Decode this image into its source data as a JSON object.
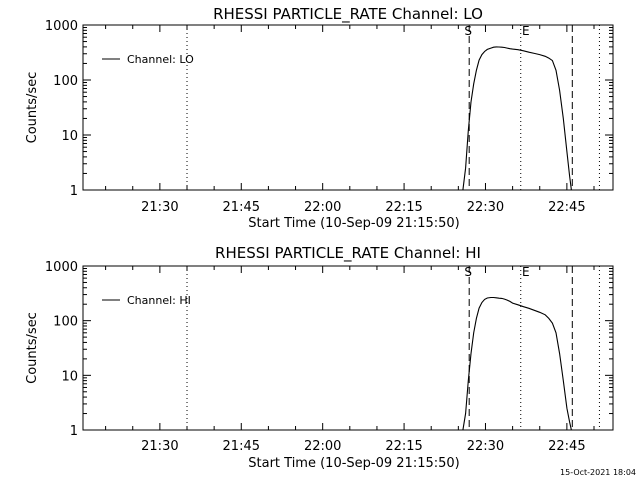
{
  "footer": {
    "timestamp": "15-Oct-2021 18:04"
  },
  "colors": {
    "background": "#ffffff",
    "ink": "#000000"
  },
  "chart_data": [
    {
      "type": "line",
      "title": "RHESSI PARTICLE_RATE Channel: LO",
      "xlabel": "Start Time (10-Sep-09 21:15:50)",
      "ylabel": "Counts/sec",
      "y_scale": "log",
      "xlim": [
        "21:15:50",
        "22:53:30"
      ],
      "ylim": [
        1,
        1000
      ],
      "x_ticks": [
        "21:30",
        "21:45",
        "22:00",
        "22:15",
        "22:30",
        "22:45"
      ],
      "y_ticks": [
        "1",
        "10",
        "100",
        "1000"
      ],
      "legend": {
        "placement": "top-left",
        "entries": [
          "Channel: LO"
        ]
      },
      "markers": [
        {
          "label": "",
          "time": "21:35:00",
          "style": "dotted"
        },
        {
          "label": "S",
          "time": "22:27:00",
          "style": "dashed"
        },
        {
          "label": "E",
          "time": "22:36:30",
          "style": "dotted"
        },
        {
          "label": "",
          "time": "22:46:00",
          "style": "dashed"
        },
        {
          "label": "",
          "time": "22:51:00",
          "style": "dotted"
        }
      ],
      "series": [
        {
          "name": "Channel: LO",
          "x": [
            "22:25:50",
            "22:26:20",
            "22:26:50",
            "22:27:20",
            "22:27:50",
            "22:28:20",
            "22:28:50",
            "22:29:20",
            "22:29:50",
            "22:30:20",
            "22:31:00",
            "22:31:30",
            "22:32:00",
            "22:32:30",
            "22:33:00",
            "22:33:30",
            "22:34:00",
            "22:34:30",
            "22:35:00",
            "22:36:00",
            "22:37:00",
            "22:38:00",
            "22:39:00",
            "22:40:00",
            "22:41:00",
            "22:41:40",
            "22:42:20",
            "22:43:00",
            "22:43:40",
            "22:44:20",
            "22:45:00",
            "22:45:30",
            "22:45:50"
          ],
          "values": [
            1,
            2.5,
            12,
            40,
            85,
            150,
            230,
            290,
            330,
            360,
            380,
            395,
            400,
            398,
            395,
            390,
            380,
            370,
            365,
            355,
            340,
            320,
            305,
            290,
            270,
            250,
            225,
            150,
            65,
            20,
            5,
            1.8,
            1
          ]
        }
      ]
    },
    {
      "type": "line",
      "title": "RHESSI PARTICLE_RATE Channel: HI",
      "xlabel": "Start Time (10-Sep-09 21:15:50)",
      "ylabel": "Counts/sec",
      "y_scale": "log",
      "xlim": [
        "21:15:50",
        "22:53:30"
      ],
      "ylim": [
        1,
        1000
      ],
      "x_ticks": [
        "21:30",
        "21:45",
        "22:00",
        "22:15",
        "22:30",
        "22:45"
      ],
      "y_ticks": [
        "1",
        "10",
        "100",
        "1000"
      ],
      "legend": {
        "placement": "top-left",
        "entries": [
          "Channel: HI"
        ]
      },
      "markers": [
        {
          "label": "",
          "time": "21:35:00",
          "style": "dotted"
        },
        {
          "label": "S",
          "time": "22:27:00",
          "style": "dashed"
        },
        {
          "label": "E",
          "time": "22:36:30",
          "style": "dotted"
        },
        {
          "label": "",
          "time": "22:46:00",
          "style": "dashed"
        },
        {
          "label": "",
          "time": "22:51:00",
          "style": "dotted"
        }
      ],
      "series": [
        {
          "name": "Channel: HI",
          "x": [
            "22:25:50",
            "22:26:20",
            "22:26:50",
            "22:27:20",
            "22:27:50",
            "22:28:20",
            "22:28:50",
            "22:29:20",
            "22:29:50",
            "22:30:20",
            "22:31:00",
            "22:31:30",
            "22:32:00",
            "22:32:30",
            "22:33:00",
            "22:33:30",
            "22:34:00",
            "22:34:30",
            "22:35:00",
            "22:36:00",
            "22:37:00",
            "22:38:00",
            "22:39:00",
            "22:40:00",
            "22:41:00",
            "22:41:40",
            "22:42:20",
            "22:43:00",
            "22:43:40",
            "22:44:20",
            "22:45:00",
            "22:45:30",
            "22:45:50"
          ],
          "values": [
            1,
            2,
            8,
            25,
            60,
            110,
            170,
            215,
            245,
            260,
            265,
            265,
            262,
            258,
            255,
            248,
            238,
            225,
            210,
            195,
            180,
            168,
            155,
            142,
            128,
            110,
            90,
            60,
            25,
            8,
            2.5,
            1.4,
            1
          ]
        }
      ]
    }
  ]
}
